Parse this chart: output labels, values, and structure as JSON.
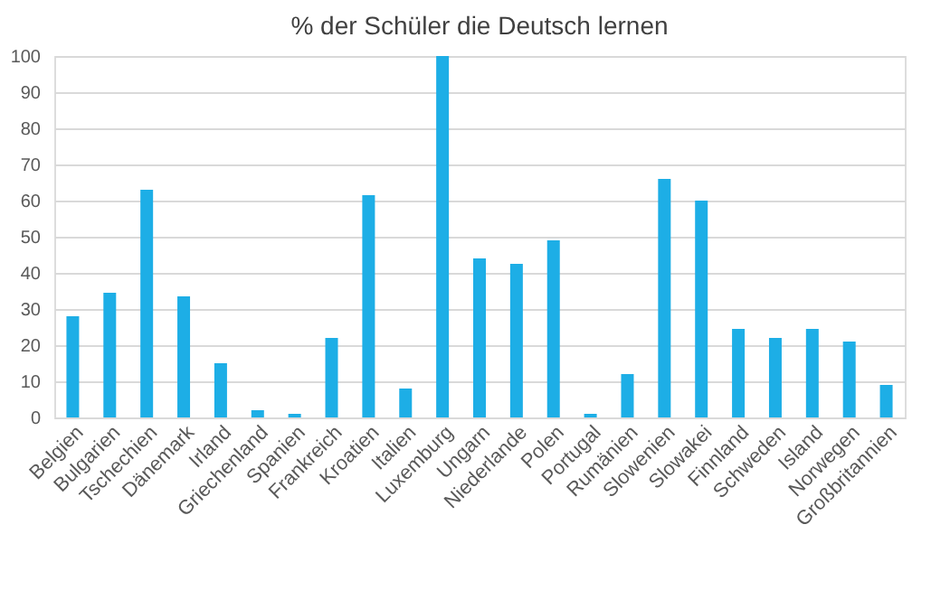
{
  "chart_data": {
    "type": "bar",
    "title": "% der Schüler die Deutsch lernen",
    "categories": [
      "Belgien",
      "Bulgarien",
      "Tschechien",
      "Dänemark",
      "Irland",
      "Griechenland",
      "Spanien",
      "Frankreich",
      "Kroatien",
      "Italien",
      "Luxemburg",
      "Ungarn",
      "Niederlande",
      "Polen",
      "Portugal",
      "Rumänien",
      "Slowenien",
      "Slowakei",
      "Finnland",
      "Schweden",
      "Island",
      "Norwegen",
      "Großbritannien"
    ],
    "values": [
      28,
      34.5,
      63,
      33.5,
      15,
      2,
      1,
      22,
      61.5,
      8,
      100,
      44,
      42.5,
      49,
      1,
      12,
      66,
      60,
      24.5,
      22,
      24.5,
      21,
      9
    ],
    "color": "#1daee6",
    "ylim": [
      0,
      100
    ],
    "yticks": [
      0,
      10,
      20,
      30,
      40,
      50,
      60,
      70,
      80,
      90,
      100
    ],
    "grid": "y"
  }
}
